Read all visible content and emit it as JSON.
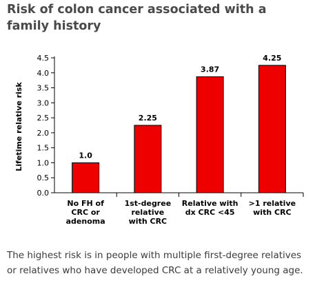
{
  "title": "Risk of colon cancer associated with a family history",
  "caption": "The highest risk is in people with multiple first-degree relatives or relatives who have developed CRC at a relatively young age.",
  "chart_data": {
    "type": "bar",
    "categories": [
      [
        "No FH of",
        "CRC or",
        "adenoma"
      ],
      [
        "1st-degree",
        "relative",
        "with CRC"
      ],
      [
        "Relative with",
        "dx CRC <45"
      ],
      [
        ">1 relative",
        "with CRC"
      ]
    ],
    "values": [
      1.0,
      2.25,
      3.87,
      4.25
    ],
    "value_labels": [
      "1.0",
      "2.25",
      "3.87",
      "4.25"
    ],
    "ylabel": "Lifetime relative risk",
    "xlabel": "",
    "ylim": [
      0,
      4.5
    ],
    "yticks": [
      "0.0",
      "0.5",
      "1.0",
      "1.5",
      "2.0",
      "2.5",
      "3.0",
      "3.5",
      "4.0",
      "4.5"
    ],
    "bar_color": "#ee0000",
    "grid": false,
    "legend": "none"
  }
}
